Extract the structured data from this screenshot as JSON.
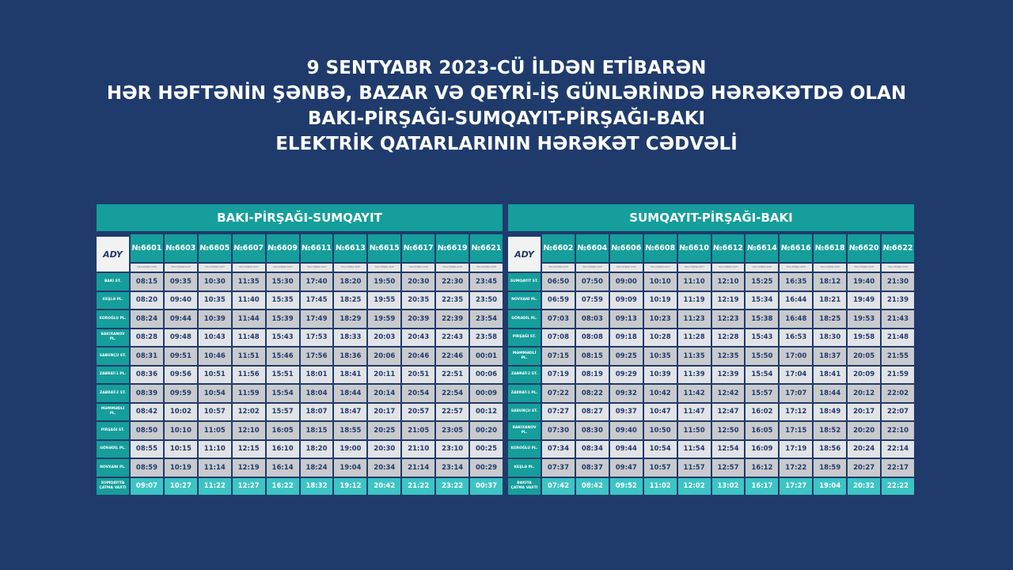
{
  "title": [
    "9 SENTYABR 2023-CÜ İLDƏN ETİBARƏN",
    "HƏR HƏFTƏNİN ŞƏNBƏ, BAZAR VƏ QEYRİ-İŞ GÜNLƏRİNDƏ HƏRƏKƏTDƏ OLAN",
    "BAKI-PİRŞAĞI-SUMQAYIT-PİRŞAĞI-BAKI",
    "ELEKTRİK QATARLARININ HƏRƏKƏT CƏDVƏLİ"
  ],
  "logo": "ADY",
  "sub_label": "YOLA DÜŞMƏ VAXTI",
  "colors": {
    "background": "#1f3b6c",
    "teal": "#159e9b",
    "arrival": "#3dc4c4"
  },
  "tables": [
    {
      "route": "BAKI-PİRŞAĞI-SUMQAYIT",
      "trains": [
        "№6601",
        "№6603",
        "№6605",
        "№6607",
        "№6609",
        "№6611",
        "№6613",
        "№6615",
        "№6617",
        "№6619",
        "№6621"
      ],
      "rows": [
        {
          "station": "BAKI ST.",
          "times": [
            "08:15",
            "09:35",
            "10:30",
            "11:35",
            "15:30",
            "17:40",
            "18:20",
            "19:50",
            "20:30",
            "22:30",
            "23:45"
          ]
        },
        {
          "station": "KEŞLƏ PL.",
          "times": [
            "08:20",
            "09:40",
            "10:35",
            "11:40",
            "15:35",
            "17:45",
            "18:25",
            "19:55",
            "20:35",
            "22:35",
            "23:50"
          ]
        },
        {
          "station": "KOROĞLU PL.",
          "times": [
            "08:24",
            "09:44",
            "10:39",
            "11:44",
            "15:39",
            "17:49",
            "18:29",
            "19:59",
            "20:39",
            "22:39",
            "23:54"
          ]
        },
        {
          "station": "BAKIXANOV PL.",
          "times": [
            "08:28",
            "09:48",
            "10:43",
            "11:48",
            "15:43",
            "17:53",
            "18:33",
            "20:03",
            "20:43",
            "22:43",
            "23:58"
          ]
        },
        {
          "station": "SABUNÇU ST.",
          "times": [
            "08:31",
            "09:51",
            "10:46",
            "11:51",
            "15:46",
            "17:56",
            "18:36",
            "20:06",
            "20:46",
            "22:46",
            "00:01"
          ]
        },
        {
          "station": "ZABRAT-1 PL.",
          "times": [
            "08:36",
            "09:56",
            "10:51",
            "11:56",
            "15:51",
            "18:01",
            "18:41",
            "20:11",
            "20:51",
            "22:51",
            "00:06"
          ]
        },
        {
          "station": "ZABRAT-2 ST.",
          "times": [
            "08:39",
            "09:59",
            "10:54",
            "11:59",
            "15:54",
            "18:04",
            "18:44",
            "20:14",
            "20:54",
            "22:54",
            "00:09"
          ]
        },
        {
          "station": "MƏMMƏDLİ PL.",
          "times": [
            "08:42",
            "10:02",
            "10:57",
            "12:02",
            "15:57",
            "18:07",
            "18:47",
            "20:17",
            "20:57",
            "22:57",
            "00:12"
          ]
        },
        {
          "station": "PİRŞAĞI ST.",
          "times": [
            "08:50",
            "10:10",
            "11:05",
            "12:10",
            "16:05",
            "18:15",
            "18:55",
            "20:25",
            "21:05",
            "23:05",
            "00:20"
          ]
        },
        {
          "station": "GÖRƏDİL PL.",
          "times": [
            "08:55",
            "10:15",
            "11:10",
            "12:15",
            "16:10",
            "18:20",
            "19:00",
            "20:30",
            "21:10",
            "23:10",
            "00:25"
          ]
        },
        {
          "station": "NOVXANI PL.",
          "times": [
            "08:59",
            "10:19",
            "11:14",
            "12:19",
            "16:14",
            "18:24",
            "19:04",
            "20:34",
            "21:14",
            "23:14",
            "00:29"
          ]
        },
        {
          "station": "SUMQAYITA ÇATMA VAXTI",
          "times": [
            "09:07",
            "10:27",
            "11:22",
            "12:27",
            "16:22",
            "18:32",
            "19:12",
            "20:42",
            "21:22",
            "23:22",
            "00:37"
          ]
        }
      ]
    },
    {
      "route": "SUMQAYIT-PİRŞAĞI-BAKI",
      "trains": [
        "№6602",
        "№6604",
        "№6606",
        "№6608",
        "№6610",
        "№6612",
        "№6614",
        "№6616",
        "№6618",
        "№6620",
        "№6622"
      ],
      "rows": [
        {
          "station": "SUMQAYIT ST.",
          "times": [
            "06:50",
            "07:50",
            "09:00",
            "10:10",
            "11:10",
            "12:10",
            "15:25",
            "16:35",
            "18:12",
            "19:40",
            "21:30"
          ]
        },
        {
          "station": "NOVXANI PL.",
          "times": [
            "06:59",
            "07:59",
            "09:09",
            "10:19",
            "11:19",
            "12:19",
            "15:34",
            "16:44",
            "18:21",
            "19:49",
            "21:39"
          ]
        },
        {
          "station": "GÖRƏDİL PL.",
          "times": [
            "07:03",
            "08:03",
            "09:13",
            "10:23",
            "11:23",
            "12:23",
            "15:38",
            "16:48",
            "18:25",
            "19:53",
            "21:43"
          ]
        },
        {
          "station": "PİRŞAĞI ST.",
          "times": [
            "07:08",
            "08:08",
            "09:18",
            "10:28",
            "11:28",
            "12:28",
            "15:43",
            "16:53",
            "18:30",
            "19:58",
            "21:48"
          ]
        },
        {
          "station": "MƏMMƏDLİ PL.",
          "times": [
            "07:15",
            "08:15",
            "09:25",
            "10:35",
            "11:35",
            "12:35",
            "15:50",
            "17:00",
            "18:37",
            "20:05",
            "21:55"
          ]
        },
        {
          "station": "ZABRAT-2 ST.",
          "times": [
            "07:19",
            "08:19",
            "09:29",
            "10:39",
            "11:39",
            "12:39",
            "15:54",
            "17:04",
            "18:41",
            "20:09",
            "21:59"
          ]
        },
        {
          "station": "ZABRAT-1 PL.",
          "times": [
            "07:22",
            "08:22",
            "09:32",
            "10:42",
            "11:42",
            "12:42",
            "15:57",
            "17:07",
            "18:44",
            "20:12",
            "22:02"
          ]
        },
        {
          "station": "SABUNÇU ST.",
          "times": [
            "07:27",
            "08:27",
            "09:37",
            "10:47",
            "11:47",
            "12:47",
            "16:02",
            "17:12",
            "18:49",
            "20:17",
            "22:07"
          ]
        },
        {
          "station": "BAKIXANOV PL.",
          "times": [
            "07:30",
            "08:30",
            "09:40",
            "10:50",
            "11:50",
            "12:50",
            "16:05",
            "17:15",
            "18:52",
            "20:20",
            "22:10"
          ]
        },
        {
          "station": "KOROĞLU PL.",
          "times": [
            "07:34",
            "08:34",
            "09:44",
            "10:54",
            "11:54",
            "12:54",
            "16:09",
            "17:19",
            "18:56",
            "20:24",
            "22:14"
          ]
        },
        {
          "station": "KEŞLƏ PL.",
          "times": [
            "07:37",
            "08:37",
            "09:47",
            "10:57",
            "11:57",
            "12:57",
            "16:12",
            "17:22",
            "18:59",
            "20:27",
            "22:17"
          ]
        },
        {
          "station": "BAKIYA ÇATMA VAXTI",
          "times": [
            "07:42",
            "08:42",
            "09:52",
            "11:02",
            "12:02",
            "13:02",
            "16:17",
            "17:27",
            "19:04",
            "20:32",
            "22:22"
          ]
        }
      ]
    }
  ]
}
